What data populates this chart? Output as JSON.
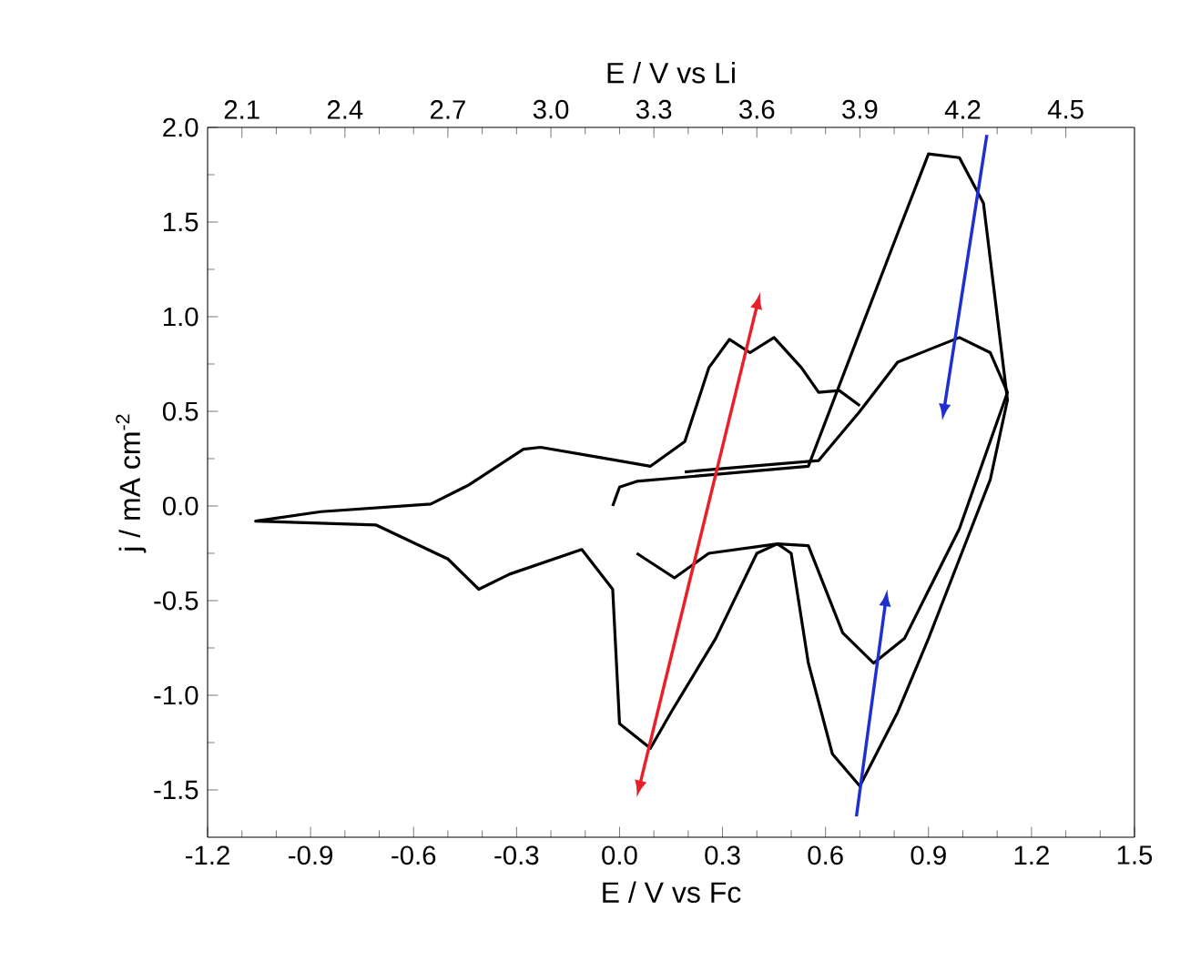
{
  "chart_data": {
    "type": "line",
    "xlabel": "E / V vs Fc",
    "x2label": "E / V vs Li",
    "ylabel": "j / mA cm$^{-2}$",
    "xlim": [
      -1.2,
      1.5
    ],
    "ylim": [
      -1.75,
      2.0
    ],
    "x2lim": [
      2.0,
      4.7
    ],
    "xticks": [
      {
        "value": -1.2,
        "label": "-1.2"
      },
      {
        "value": -0.9,
        "label": "-0.9"
      },
      {
        "value": -0.6,
        "label": "-0.6"
      },
      {
        "value": -0.3,
        "label": "-0.3"
      },
      {
        "value": 0,
        "label": "0.0"
      },
      {
        "value": 0.3,
        "label": "0.3"
      },
      {
        "value": 0.6,
        "label": "0.6"
      },
      {
        "value": 0.9,
        "label": "0.9"
      },
      {
        "value": 1.2,
        "label": "1.2"
      },
      {
        "value": 1.5,
        "label": "1.5"
      }
    ],
    "x2ticks": [
      {
        "value": 2.1,
        "label": "2.1"
      },
      {
        "value": 2.4,
        "label": "2.4"
      },
      {
        "value": 2.7,
        "label": "2.7"
      },
      {
        "value": 3.0,
        "label": "3.0"
      },
      {
        "value": 3.3,
        "label": "3.3"
      },
      {
        "value": 3.6,
        "label": "3.6"
      },
      {
        "value": 3.9,
        "label": "3.9"
      },
      {
        "value": 4.2,
        "label": "4.2"
      },
      {
        "value": 4.5,
        "label": "4.5"
      }
    ],
    "yticks": [
      {
        "value": -1.5,
        "label": "-1.5"
      },
      {
        "value": -1.0,
        "label": "-1.0"
      },
      {
        "value": -0.5,
        "label": "-0.5"
      },
      {
        "value": 0,
        "label": "0.0"
      },
      {
        "value": 0.5,
        "label": "0.5"
      },
      {
        "value": 1.0,
        "label": "1.0"
      },
      {
        "value": 1.5,
        "label": "1.5"
      },
      {
        "value": 2.0,
        "label": "2.0"
      }
    ],
    "grid": false,
    "marker": "none",
    "line_style": "solid",
    "series": [
      {
        "color": "#000000",
        "x": [
          -0.02,
          0.0,
          0.05,
          0.55,
          0.7,
          0.81,
          0.9,
          0.99,
          1.06,
          1.13,
          1.13,
          1.08,
          0.99,
          0.9,
          0.81,
          0.7,
          0.62,
          0.55,
          0.5,
          0.46,
          0.4,
          0.28,
          0.15,
          0.09,
          0.0,
          -0.02,
          -0.11,
          -0.32,
          -0.41,
          -0.5,
          -0.71,
          -1.06,
          -0.87,
          -0.55,
          -0.44,
          -0.28,
          -0.23,
          -0.07,
          0.09,
          0.19,
          0.26,
          0.32,
          0.38,
          0.45,
          0.53,
          0.58,
          0.64,
          0.7
        ],
        "values": [
          0.0,
          0.1,
          0.13,
          0.21,
          0.92,
          1.44,
          1.86,
          1.84,
          1.6,
          0.56,
          0.56,
          0.14,
          -0.28,
          -0.7,
          -1.09,
          -1.48,
          -1.31,
          -0.83,
          -0.25,
          -0.2,
          -0.25,
          -0.7,
          -1.09,
          -1.28,
          -1.15,
          -0.44,
          -0.23,
          -0.36,
          -0.44,
          -0.28,
          -0.1,
          -0.08,
          -0.03,
          0.01,
          0.11,
          0.3,
          0.31,
          0.26,
          0.21,
          0.34,
          0.73,
          0.88,
          0.81,
          0.89,
          0.73,
          0.6,
          0.61,
          0.53
        ]
      },
      {
        "color": "#000000",
        "x": [
          0.19,
          0.38,
          0.58,
          0.7,
          0.81,
          0.99,
          1.08,
          1.13,
          0.99,
          0.83,
          0.74,
          0.65,
          0.55,
          0.46,
          0.26,
          0.16,
          0.05
        ],
        "values": [
          0.18,
          0.21,
          0.24,
          0.5,
          0.76,
          0.89,
          0.81,
          0.6,
          -0.12,
          -0.7,
          -0.83,
          -0.67,
          -0.21,
          -0.2,
          -0.25,
          -0.38,
          -0.25
        ]
      }
    ]
  }
}
